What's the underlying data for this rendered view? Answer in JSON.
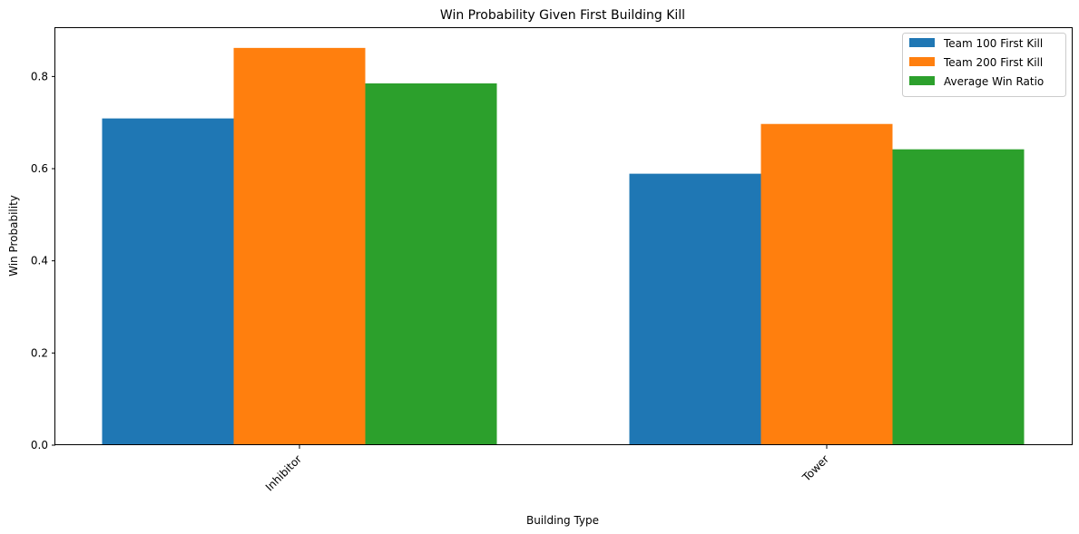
{
  "chart_data": {
    "type": "bar",
    "title": "Win Probability Given First Building Kill",
    "xlabel": "Building Type",
    "ylabel": "Win Probability",
    "categories": [
      "Inhibitor",
      "Tower"
    ],
    "series": [
      {
        "name": "Team 100 First Kill",
        "color": "#1f77b4",
        "values": [
          0.709,
          0.589
        ]
      },
      {
        "name": "Team 200 First Kill",
        "color": "#ff7f0e",
        "values": [
          0.862,
          0.697
        ]
      },
      {
        "name": "Average Win Ratio",
        "color": "#2ca02c",
        "values": [
          0.785,
          0.642
        ]
      }
    ],
    "ylim": [
      0,
      0.905
    ],
    "yticks": [
      0.0,
      0.2,
      0.4,
      0.6,
      0.8
    ],
    "ytick_labels": [
      "0.0",
      "0.2",
      "0.4",
      "0.6",
      "0.8"
    ],
    "grid": false,
    "legend_position": "top-right"
  }
}
